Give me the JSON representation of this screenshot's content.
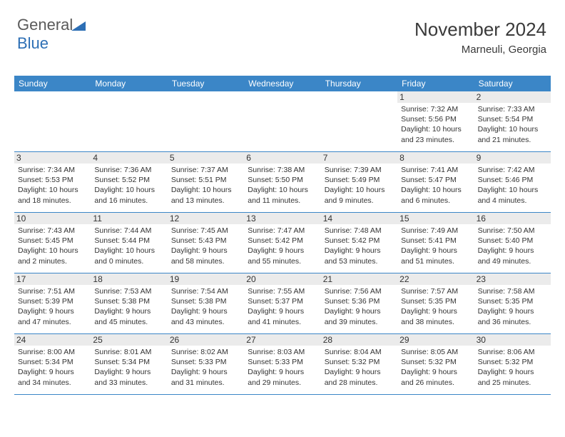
{
  "logo": {
    "general": "General",
    "blue": "Blue"
  },
  "header": {
    "title": "November 2024",
    "location": "Marneuli, Georgia"
  },
  "colors": {
    "header_bar": "#3b86c7",
    "daynum_bg": "#ebebeb",
    "rule": "#3b86c7",
    "text": "#333333",
    "logo_gray": "#5a5a5a",
    "logo_blue": "#2d6fb5",
    "background": "#ffffff"
  },
  "dayNames": [
    "Sunday",
    "Monday",
    "Tuesday",
    "Wednesday",
    "Thursday",
    "Friday",
    "Saturday"
  ],
  "weeks": [
    [
      null,
      null,
      null,
      null,
      null,
      {
        "n": "1",
        "sunrise": "Sunrise: 7:32 AM",
        "sunset": "Sunset: 5:56 PM",
        "daylight": "Daylight: 10 hours and 23 minutes."
      },
      {
        "n": "2",
        "sunrise": "Sunrise: 7:33 AM",
        "sunset": "Sunset: 5:54 PM",
        "daylight": "Daylight: 10 hours and 21 minutes."
      }
    ],
    [
      {
        "n": "3",
        "sunrise": "Sunrise: 7:34 AM",
        "sunset": "Sunset: 5:53 PM",
        "daylight": "Daylight: 10 hours and 18 minutes."
      },
      {
        "n": "4",
        "sunrise": "Sunrise: 7:36 AM",
        "sunset": "Sunset: 5:52 PM",
        "daylight": "Daylight: 10 hours and 16 minutes."
      },
      {
        "n": "5",
        "sunrise": "Sunrise: 7:37 AM",
        "sunset": "Sunset: 5:51 PM",
        "daylight": "Daylight: 10 hours and 13 minutes."
      },
      {
        "n": "6",
        "sunrise": "Sunrise: 7:38 AM",
        "sunset": "Sunset: 5:50 PM",
        "daylight": "Daylight: 10 hours and 11 minutes."
      },
      {
        "n": "7",
        "sunrise": "Sunrise: 7:39 AM",
        "sunset": "Sunset: 5:49 PM",
        "daylight": "Daylight: 10 hours and 9 minutes."
      },
      {
        "n": "8",
        "sunrise": "Sunrise: 7:41 AM",
        "sunset": "Sunset: 5:47 PM",
        "daylight": "Daylight: 10 hours and 6 minutes."
      },
      {
        "n": "9",
        "sunrise": "Sunrise: 7:42 AM",
        "sunset": "Sunset: 5:46 PM",
        "daylight": "Daylight: 10 hours and 4 minutes."
      }
    ],
    [
      {
        "n": "10",
        "sunrise": "Sunrise: 7:43 AM",
        "sunset": "Sunset: 5:45 PM",
        "daylight": "Daylight: 10 hours and 2 minutes."
      },
      {
        "n": "11",
        "sunrise": "Sunrise: 7:44 AM",
        "sunset": "Sunset: 5:44 PM",
        "daylight": "Daylight: 10 hours and 0 minutes."
      },
      {
        "n": "12",
        "sunrise": "Sunrise: 7:45 AM",
        "sunset": "Sunset: 5:43 PM",
        "daylight": "Daylight: 9 hours and 58 minutes."
      },
      {
        "n": "13",
        "sunrise": "Sunrise: 7:47 AM",
        "sunset": "Sunset: 5:42 PM",
        "daylight": "Daylight: 9 hours and 55 minutes."
      },
      {
        "n": "14",
        "sunrise": "Sunrise: 7:48 AM",
        "sunset": "Sunset: 5:42 PM",
        "daylight": "Daylight: 9 hours and 53 minutes."
      },
      {
        "n": "15",
        "sunrise": "Sunrise: 7:49 AM",
        "sunset": "Sunset: 5:41 PM",
        "daylight": "Daylight: 9 hours and 51 minutes."
      },
      {
        "n": "16",
        "sunrise": "Sunrise: 7:50 AM",
        "sunset": "Sunset: 5:40 PM",
        "daylight": "Daylight: 9 hours and 49 minutes."
      }
    ],
    [
      {
        "n": "17",
        "sunrise": "Sunrise: 7:51 AM",
        "sunset": "Sunset: 5:39 PM",
        "daylight": "Daylight: 9 hours and 47 minutes."
      },
      {
        "n": "18",
        "sunrise": "Sunrise: 7:53 AM",
        "sunset": "Sunset: 5:38 PM",
        "daylight": "Daylight: 9 hours and 45 minutes."
      },
      {
        "n": "19",
        "sunrise": "Sunrise: 7:54 AM",
        "sunset": "Sunset: 5:38 PM",
        "daylight": "Daylight: 9 hours and 43 minutes."
      },
      {
        "n": "20",
        "sunrise": "Sunrise: 7:55 AM",
        "sunset": "Sunset: 5:37 PM",
        "daylight": "Daylight: 9 hours and 41 minutes."
      },
      {
        "n": "21",
        "sunrise": "Sunrise: 7:56 AM",
        "sunset": "Sunset: 5:36 PM",
        "daylight": "Daylight: 9 hours and 39 minutes."
      },
      {
        "n": "22",
        "sunrise": "Sunrise: 7:57 AM",
        "sunset": "Sunset: 5:35 PM",
        "daylight": "Daylight: 9 hours and 38 minutes."
      },
      {
        "n": "23",
        "sunrise": "Sunrise: 7:58 AM",
        "sunset": "Sunset: 5:35 PM",
        "daylight": "Daylight: 9 hours and 36 minutes."
      }
    ],
    [
      {
        "n": "24",
        "sunrise": "Sunrise: 8:00 AM",
        "sunset": "Sunset: 5:34 PM",
        "daylight": "Daylight: 9 hours and 34 minutes."
      },
      {
        "n": "25",
        "sunrise": "Sunrise: 8:01 AM",
        "sunset": "Sunset: 5:34 PM",
        "daylight": "Daylight: 9 hours and 33 minutes."
      },
      {
        "n": "26",
        "sunrise": "Sunrise: 8:02 AM",
        "sunset": "Sunset: 5:33 PM",
        "daylight": "Daylight: 9 hours and 31 minutes."
      },
      {
        "n": "27",
        "sunrise": "Sunrise: 8:03 AM",
        "sunset": "Sunset: 5:33 PM",
        "daylight": "Daylight: 9 hours and 29 minutes."
      },
      {
        "n": "28",
        "sunrise": "Sunrise: 8:04 AM",
        "sunset": "Sunset: 5:32 PM",
        "daylight": "Daylight: 9 hours and 28 minutes."
      },
      {
        "n": "29",
        "sunrise": "Sunrise: 8:05 AM",
        "sunset": "Sunset: 5:32 PM",
        "daylight": "Daylight: 9 hours and 26 minutes."
      },
      {
        "n": "30",
        "sunrise": "Sunrise: 8:06 AM",
        "sunset": "Sunset: 5:32 PM",
        "daylight": "Daylight: 9 hours and 25 minutes."
      }
    ]
  ]
}
